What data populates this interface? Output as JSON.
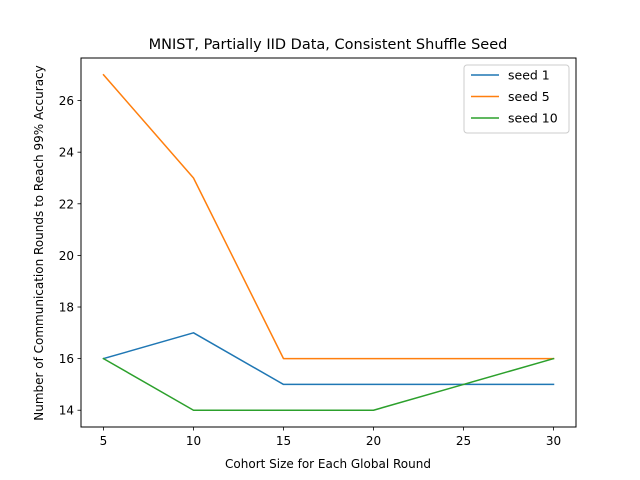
{
  "chart_data": {
    "type": "line",
    "title": "MNIST, Partially IID Data, Consistent Shuffle Seed",
    "xlabel": "Cohort Size for Each Global Round",
    "ylabel": "Number of Communication Rounds to Reach 99% Accuracy",
    "x": [
      5,
      10,
      15,
      20,
      25,
      30
    ],
    "xticks": [
      5,
      10,
      15,
      20,
      25,
      30
    ],
    "yticks": [
      14,
      16,
      18,
      20,
      22,
      24,
      26
    ],
    "xlim": [
      3.75,
      31.25
    ],
    "ylim": [
      13.35,
      27.65
    ],
    "grid": false,
    "legend_position": "top-right",
    "series": [
      {
        "name": "seed 1",
        "color": "#1f77b4",
        "values": [
          16,
          17,
          15,
          15,
          15,
          15
        ]
      },
      {
        "name": "seed 5",
        "color": "#ff7f0e",
        "values": [
          27,
          23,
          16,
          16,
          16,
          16
        ]
      },
      {
        "name": "seed 10",
        "color": "#2ca02c",
        "values": [
          16,
          14,
          14,
          14,
          15,
          16
        ]
      }
    ]
  }
}
